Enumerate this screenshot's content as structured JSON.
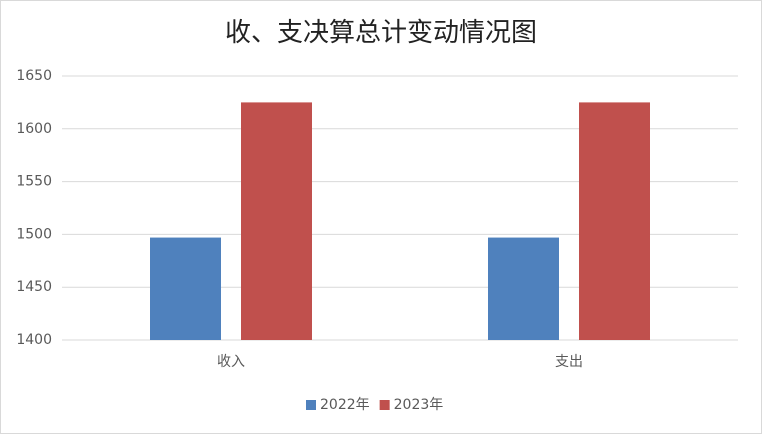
{
  "chart_data": {
    "type": "bar",
    "title": "收、支决算总计变动情况图",
    "categories": [
      "收入",
      "支出"
    ],
    "series": [
      {
        "name": "2022年",
        "color": "#4f81bd",
        "values": [
          1497,
          1497
        ]
      },
      {
        "name": "2023年",
        "color": "#c0504d",
        "values": [
          1625,
          1625
        ]
      }
    ],
    "ylim": [
      1400,
      1650
    ],
    "yticks": [
      1400,
      1450,
      1500,
      1550,
      1600,
      1650
    ],
    "grid": true,
    "legend": "bottom"
  }
}
